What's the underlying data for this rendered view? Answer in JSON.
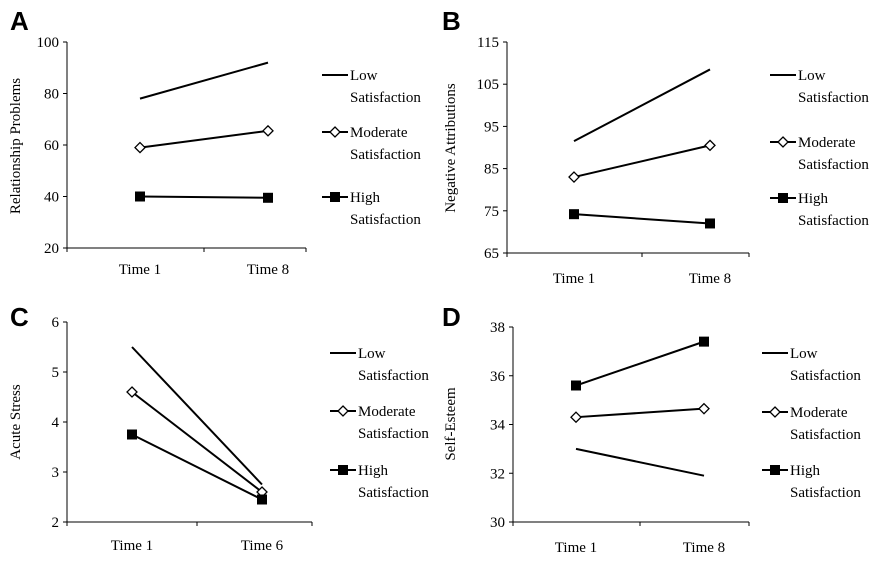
{
  "chart_data": [
    {
      "panel": "A",
      "type": "line",
      "ylabel": "Relationship Problems",
      "ylim": [
        20,
        100
      ],
      "yticks": [
        20,
        40,
        60,
        80,
        100
      ],
      "categories": [
        "Time 1",
        "Time 8"
      ],
      "series": [
        {
          "name": "Low Satisfaction",
          "legend_lines": [
            "Low",
            "Satisfaction"
          ],
          "marker": "none",
          "values": [
            78,
            92
          ]
        },
        {
          "name": "Moderate Satisfaction",
          "legend_lines": [
            "Moderate",
            "Satisfaction"
          ],
          "marker": "diamond",
          "values": [
            59,
            65.5
          ]
        },
        {
          "name": "High Satisfaction",
          "legend_lines": [
            "High",
            "Satisfaction"
          ],
          "marker": "square",
          "values": [
            40,
            39.5
          ]
        }
      ]
    },
    {
      "panel": "B",
      "type": "line",
      "ylabel": "Negative Attributions",
      "ylim": [
        65,
        115
      ],
      "yticks": [
        65,
        75,
        85,
        95,
        105,
        115
      ],
      "categories": [
        "Time 1",
        "Time 8"
      ],
      "series": [
        {
          "name": "Low Satisfaction",
          "legend_lines": [
            "Low",
            "Satisfaction"
          ],
          "marker": "none",
          "values": [
            91.5,
            108.5
          ]
        },
        {
          "name": "Moderate Satisfaction",
          "legend_lines": [
            "Moderate",
            "Satisfaction"
          ],
          "marker": "diamond",
          "values": [
            83,
            90.5
          ]
        },
        {
          "name": "High Satisfaction",
          "legend_lines": [
            "High",
            "Satisfaction"
          ],
          "marker": "square",
          "values": [
            74.2,
            72
          ]
        }
      ]
    },
    {
      "panel": "C",
      "type": "line",
      "ylabel": "Acute Stress",
      "ylim": [
        2,
        6
      ],
      "yticks": [
        2,
        3,
        4,
        5,
        6
      ],
      "categories": [
        "Time 1",
        "Time 6"
      ],
      "series": [
        {
          "name": "Low Satisfaction",
          "legend_lines": [
            "Low",
            "Satisfaction"
          ],
          "marker": "none",
          "values": [
            5.5,
            2.75
          ]
        },
        {
          "name": "Moderate Satisfaction",
          "legend_lines": [
            "Moderate",
            "Satisfaction"
          ],
          "marker": "diamond",
          "values": [
            4.6,
            2.6
          ]
        },
        {
          "name": "High Satisfaction",
          "legend_lines": [
            "High",
            "Satisfaction"
          ],
          "marker": "square",
          "values": [
            3.75,
            2.45
          ]
        }
      ]
    },
    {
      "panel": "D",
      "type": "line",
      "ylabel": "Self-Esteem",
      "ylim": [
        30,
        38
      ],
      "yticks": [
        30,
        32,
        34,
        36,
        38
      ],
      "categories": [
        "Time 1",
        "Time 8"
      ],
      "series": [
        {
          "name": "Low Satisfaction",
          "legend_lines": [
            "Low",
            "Satisfaction"
          ],
          "marker": "none",
          "values": [
            33,
            31.9
          ]
        },
        {
          "name": "Moderate Satisfaction",
          "legend_lines": [
            "Moderate",
            "Satisfaction"
          ],
          "marker": "diamond",
          "values": [
            34.3,
            34.65
          ]
        },
        {
          "name": "High Satisfaction",
          "legend_lines": [
            "High",
            "Satisfaction"
          ],
          "marker": "square",
          "values": [
            35.6,
            37.4
          ]
        }
      ]
    }
  ]
}
